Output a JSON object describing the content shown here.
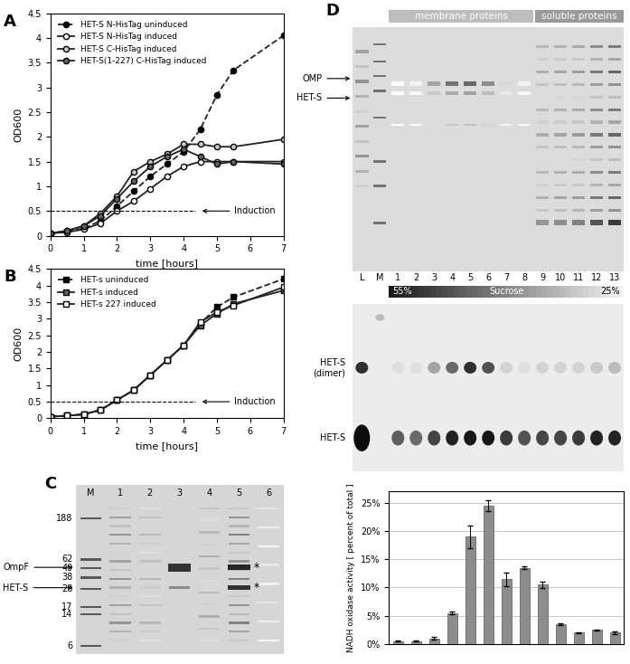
{
  "chart_data": [
    {
      "panel": "A",
      "type": "line",
      "xlabel": "time [hours]",
      "ylabel": "OD600",
      "xlim": [
        0,
        7
      ],
      "xticks": [
        0,
        1,
        2,
        3,
        4,
        5,
        6,
        7
      ],
      "ylim": [
        0,
        4.5
      ],
      "yticks": [
        0,
        0.5,
        1,
        1.5,
        2,
        2.5,
        3,
        3.5,
        4,
        4.5
      ],
      "legend": "upper left",
      "annotations": [
        {
          "text": "Induction",
          "y": 0.5
        }
      ],
      "x": [
        0,
        0.5,
        1,
        1.5,
        2,
        2.5,
        3,
        3.5,
        4,
        4.5,
        5,
        5.5,
        7
      ],
      "series": [
        {
          "name": "HET-S N-HisTag uninduced",
          "color": "#000000",
          "marker": "circle",
          "line_style": "dashed",
          "values": [
            0.05,
            0.08,
            0.15,
            0.3,
            0.6,
            0.9,
            1.2,
            1.45,
            1.7,
            2.15,
            2.85,
            3.35,
            4.05
          ]
        },
        {
          "name": "HET-S N-HisTag induced",
          "color": "#ffffff",
          "marker": "circle",
          "line_style": "solid",
          "values": [
            0.05,
            0.07,
            0.13,
            0.25,
            0.5,
            0.7,
            0.95,
            1.2,
            1.4,
            1.5,
            1.5,
            1.5,
            1.5
          ]
        },
        {
          "name": "HET-S C-HisTag induced",
          "color": "#c8c8c8",
          "marker": "circle",
          "line_style": "solid",
          "values": [
            0.05,
            0.1,
            0.2,
            0.45,
            0.8,
            1.3,
            1.5,
            1.65,
            1.85,
            1.85,
            1.8,
            1.8,
            1.95
          ]
        },
        {
          "name": "HET-S(1-227) C-HisTag induced",
          "color": "#606060",
          "marker": "circle",
          "line_style": "solid",
          "values": [
            0.05,
            0.1,
            0.2,
            0.4,
            0.75,
            1.1,
            1.4,
            1.6,
            1.75,
            1.6,
            1.45,
            1.5,
            1.45
          ]
        }
      ]
    },
    {
      "panel": "B",
      "type": "line",
      "xlabel": "time [hours]",
      "ylabel": "OD600",
      "xlim": [
        0,
        7
      ],
      "xticks": [
        0,
        1,
        2,
        3,
        4,
        5,
        6,
        7
      ],
      "ylim": [
        0,
        4.5
      ],
      "yticks": [
        0,
        0.5,
        1,
        1.5,
        2,
        2.5,
        3,
        3.5,
        4,
        4.5
      ],
      "legend": "upper left",
      "annotations": [
        {
          "text": "Induction",
          "y": 0.5
        }
      ],
      "x": [
        0,
        0.5,
        1,
        1.5,
        2,
        2.5,
        3,
        3.5,
        4,
        4.5,
        5,
        5.5,
        7
      ],
      "series": [
        {
          "name": "HET-s uninduced",
          "color": "#000000",
          "marker": "square",
          "line_style": "dashed",
          "values": [
            0.05,
            0.08,
            0.12,
            0.25,
            0.55,
            0.85,
            1.3,
            1.75,
            2.2,
            2.85,
            3.35,
            3.65,
            4.2
          ]
        },
        {
          "name": "HET-s induced",
          "color": "#606060",
          "marker": "square",
          "line_style": "solid",
          "values": [
            0.05,
            0.08,
            0.12,
            0.25,
            0.55,
            0.85,
            1.3,
            1.75,
            2.2,
            2.8,
            3.15,
            3.45,
            3.85
          ]
        },
        {
          "name": "HET-s 227 induced",
          "color": "#ffffff",
          "marker": "square",
          "line_style": "solid",
          "values": [
            0.05,
            0.08,
            0.12,
            0.25,
            0.55,
            0.85,
            1.3,
            1.75,
            2.2,
            2.9,
            3.2,
            3.4,
            3.95
          ]
        }
      ]
    },
    {
      "type": "bar",
      "ylabel": "NADH oxidase activity [ percent of total ]",
      "categories": [
        null,
        null,
        null,
        null,
        null,
        null,
        null,
        null,
        null,
        null,
        null,
        null,
        null
      ],
      "values": [
        0.5,
        0.5,
        1,
        5.5,
        19,
        24.5,
        11.5,
        13.5,
        10.5,
        3.5,
        2,
        2.5,
        2
      ],
      "errors": [
        0.1,
        0.1,
        0.2,
        0.3,
        2,
        1,
        1.2,
        0.2,
        0.6,
        0.2,
        0.1,
        0.1,
        0.2
      ],
      "color": "#8c8c8c",
      "ylim": [
        0,
        27
      ],
      "yticks": [
        {
          "value": 0,
          "label": "0%"
        },
        {
          "value": 5,
          "label": "5%"
        },
        {
          "value": 10,
          "label": "10%"
        },
        {
          "value": 15,
          "label": "15%"
        },
        {
          "value": 20,
          "label": "20%"
        },
        {
          "value": 25,
          "label": "25%"
        }
      ],
      "grid": true
    }
  ],
  "gels": {
    "C": {
      "panel": "C",
      "lanes": [
        "M",
        "1",
        "2",
        "3",
        "4",
        "5",
        "6"
      ],
      "markers": [
        188,
        62,
        49,
        38,
        28,
        17,
        14,
        6
      ],
      "labels": [
        "OmpF",
        "HET-S"
      ],
      "marks": [
        "*",
        "*"
      ]
    },
    "D": {
      "panel": "D",
      "lanes": [
        "L",
        "M",
        "1",
        "2",
        "3",
        "4",
        "5",
        "6",
        "7",
        "8",
        "9",
        "10",
        "11",
        "12",
        "13"
      ],
      "headers": [
        "membrane proteins",
        "soluble proteins"
      ],
      "labels": [
        "OMP",
        "HET-S"
      ],
      "blot_labels": [
        "HET-S\n(dimer)",
        "HET-S"
      ],
      "gradient": [
        "55%",
        "Sucrose",
        "25%"
      ]
    }
  }
}
